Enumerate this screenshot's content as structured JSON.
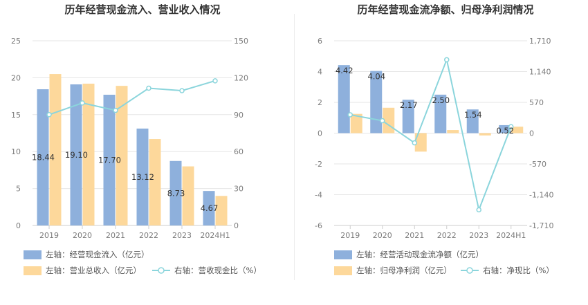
{
  "colors": {
    "bar_primary": "#8eb0dc",
    "bar_secondary": "#fdd89b",
    "line": "#8bd5dc",
    "grid": "#e6e6e6",
    "text_dark": "#333333",
    "tick": "#7b7b7b"
  },
  "chart_data": [
    {
      "type": "bar",
      "title": "历年经营现金流入、营业收入情况",
      "categories": [
        "2019",
        "2020",
        "2021",
        "2022",
        "2023",
        "2024H1"
      ],
      "y_left": {
        "min": 0,
        "max": 25,
        "ticks": [
          "0",
          "5",
          "10",
          "15",
          "20",
          "25"
        ]
      },
      "y_right": {
        "min": 0,
        "max": 150,
        "ticks": [
          "0",
          "30",
          "60",
          "90",
          "120",
          "150"
        ]
      },
      "grid": true,
      "legend_position": "bottom-left",
      "series": [
        {
          "name": "左轴：经营现金流入（亿元）",
          "kind": "bar",
          "axis": "left",
          "values": [
            18.44,
            19.1,
            17.7,
            13.12,
            8.73,
            4.67
          ],
          "labels": [
            "18.44",
            "19.10",
            "17.70",
            "13.12",
            "8.73",
            "4.67"
          ]
        },
        {
          "name": "左轴：营业总收入（亿元）",
          "kind": "bar",
          "axis": "left",
          "values": [
            20.5,
            19.2,
            18.9,
            11.7,
            8.0,
            4.0
          ]
        },
        {
          "name": "右轴：营收现金比（%）",
          "kind": "line",
          "axis": "right",
          "values": [
            90.0,
            99.5,
            93.5,
            111.5,
            109.5,
            117.5
          ]
        }
      ]
    },
    {
      "type": "bar",
      "title": "历年经营现金流净额、归母净利润情况",
      "categories": [
        "2019",
        "2020",
        "2021",
        "2022",
        "2023",
        "2024H1"
      ],
      "y_left": {
        "min": -6,
        "max": 6,
        "ticks": [
          "-6",
          "-4",
          "-2",
          "0",
          "2",
          "4",
          "6"
        ]
      },
      "y_right": {
        "min": -1710,
        "max": 1710,
        "ticks": [
          "-1,710",
          "-1,140",
          "-570",
          "0",
          "570",
          "1,140",
          "1,710"
        ]
      },
      "grid": true,
      "legend_position": "bottom-left",
      "series": [
        {
          "name": "左轴：经营活动现金流净额（亿元）",
          "kind": "bar",
          "axis": "left",
          "values": [
            4.42,
            4.04,
            2.17,
            2.5,
            1.54,
            0.52
          ],
          "labels": [
            "4.42",
            "4.04",
            "2.17",
            "2.50",
            "1.54",
            "0.52"
          ]
        },
        {
          "name": "左轴：归母净利润（亿元）",
          "kind": "bar",
          "axis": "left",
          "values": [
            1.25,
            1.65,
            -1.2,
            0.2,
            -0.15,
            0.42
          ]
        },
        {
          "name": "右轴：净现比（%）",
          "kind": "line",
          "axis": "right",
          "values": [
            340,
            230,
            -180,
            1360,
            -1420,
            120
          ]
        }
      ]
    }
  ]
}
